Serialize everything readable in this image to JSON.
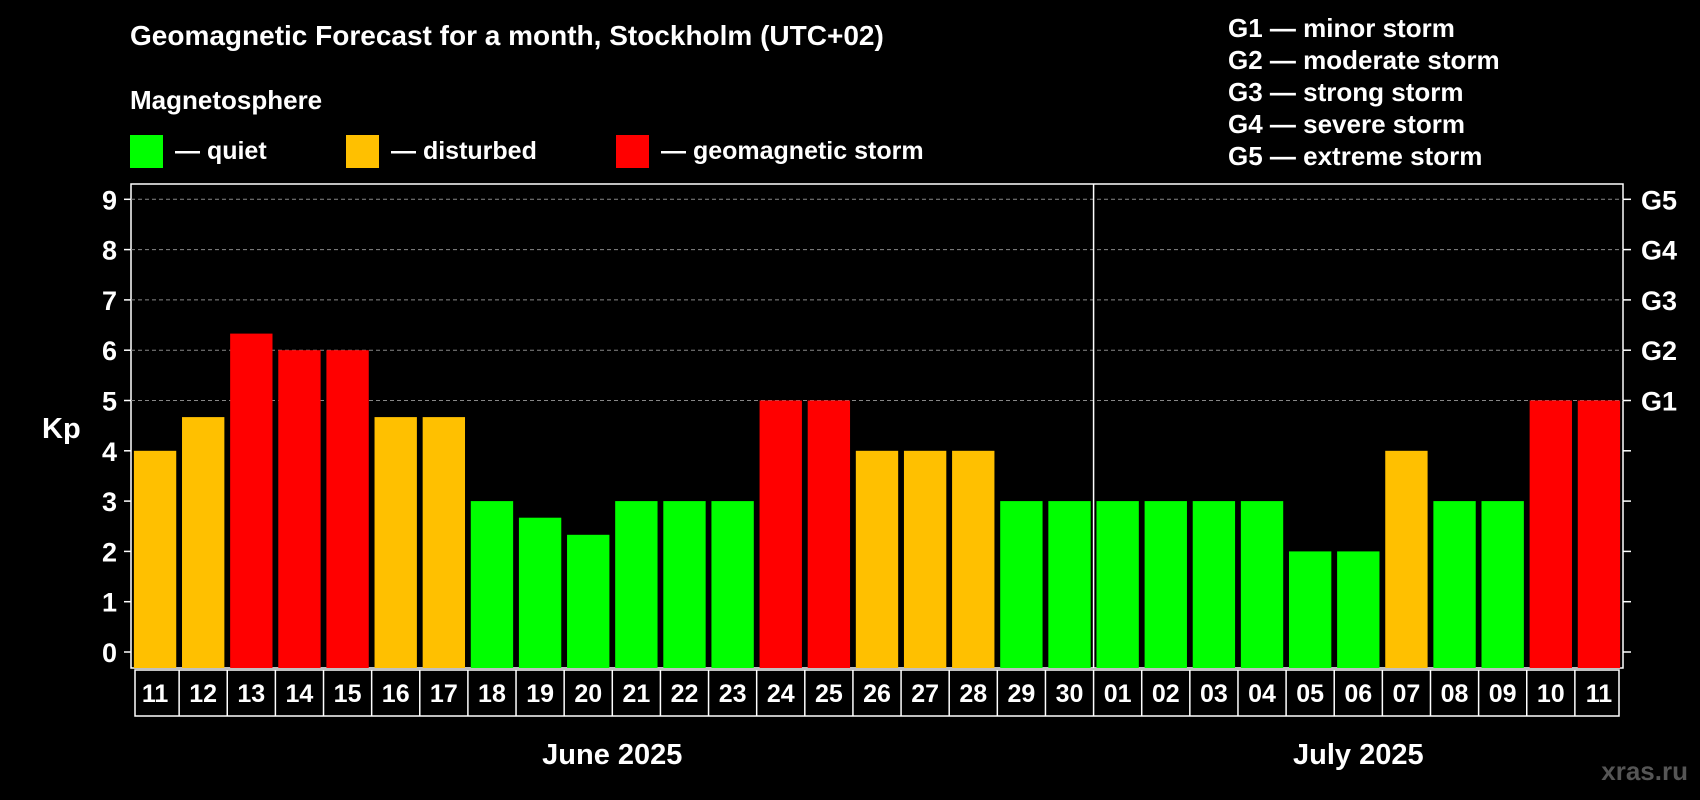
{
  "title": "Geomagnetic Forecast for a month, Stockholm (UTC+02)",
  "magnetosphere_label": "Magnetosphere",
  "legend": [
    {
      "color": "#00ff00",
      "label": "— quiet"
    },
    {
      "color": "#ffc000",
      "label": "— disturbed"
    },
    {
      "color": "#ff0000",
      "label": "— geomagnetic storm"
    }
  ],
  "g_scale": [
    "G1 — minor storm",
    "G2 — moderate storm",
    "G3 — strong storm",
    "G4 — severe storm",
    "G5 — extreme storm"
  ],
  "watermark": "xras.ru",
  "chart_data": {
    "type": "bar",
    "title": "Geomagnetic Forecast for a month, Stockholm (UTC+02)",
    "ylabel": "Kp",
    "ylim": [
      0,
      9
    ],
    "yticks": [
      "0",
      "1",
      "2",
      "3",
      "4",
      "5",
      "6",
      "7",
      "8",
      "9"
    ],
    "right_axis_labels": [
      {
        "value": 5,
        "label": "G1"
      },
      {
        "value": 6,
        "label": "G2"
      },
      {
        "value": 7,
        "label": "G3"
      },
      {
        "value": 8,
        "label": "G4"
      },
      {
        "value": 9,
        "label": "G5"
      }
    ],
    "categories": [
      "11",
      "12",
      "13",
      "14",
      "15",
      "16",
      "17",
      "18",
      "19",
      "20",
      "21",
      "22",
      "23",
      "24",
      "25",
      "26",
      "27",
      "28",
      "29",
      "30",
      "01",
      "02",
      "03",
      "04",
      "05",
      "06",
      "07",
      "08",
      "09",
      "10",
      "11"
    ],
    "values": [
      4,
      4.67,
      6.33,
      6,
      6,
      4.67,
      4.67,
      3,
      2.67,
      2.33,
      3,
      3,
      3,
      5,
      5,
      4,
      4,
      4,
      3,
      3,
      3,
      3,
      3,
      3,
      2,
      2,
      4,
      3,
      3,
      5,
      5
    ],
    "bar_levels": [
      "disturbed",
      "disturbed",
      "storm",
      "storm",
      "storm",
      "disturbed",
      "disturbed",
      "quiet",
      "quiet",
      "quiet",
      "quiet",
      "quiet",
      "quiet",
      "storm",
      "storm",
      "disturbed",
      "disturbed",
      "disturbed",
      "quiet",
      "quiet",
      "quiet",
      "quiet",
      "quiet",
      "quiet",
      "quiet",
      "quiet",
      "disturbed",
      "quiet",
      "quiet",
      "storm",
      "storm"
    ],
    "level_colors": {
      "quiet": "#00ff00",
      "disturbed": "#ffc000",
      "storm": "#ff0000"
    },
    "months": [
      {
        "label": "June 2025",
        "start_index": 0,
        "end_index": 19
      },
      {
        "label": "July 2025",
        "start_index": 20,
        "end_index": 30
      }
    ],
    "month_divider_after_index": 19,
    "grid": true
  }
}
